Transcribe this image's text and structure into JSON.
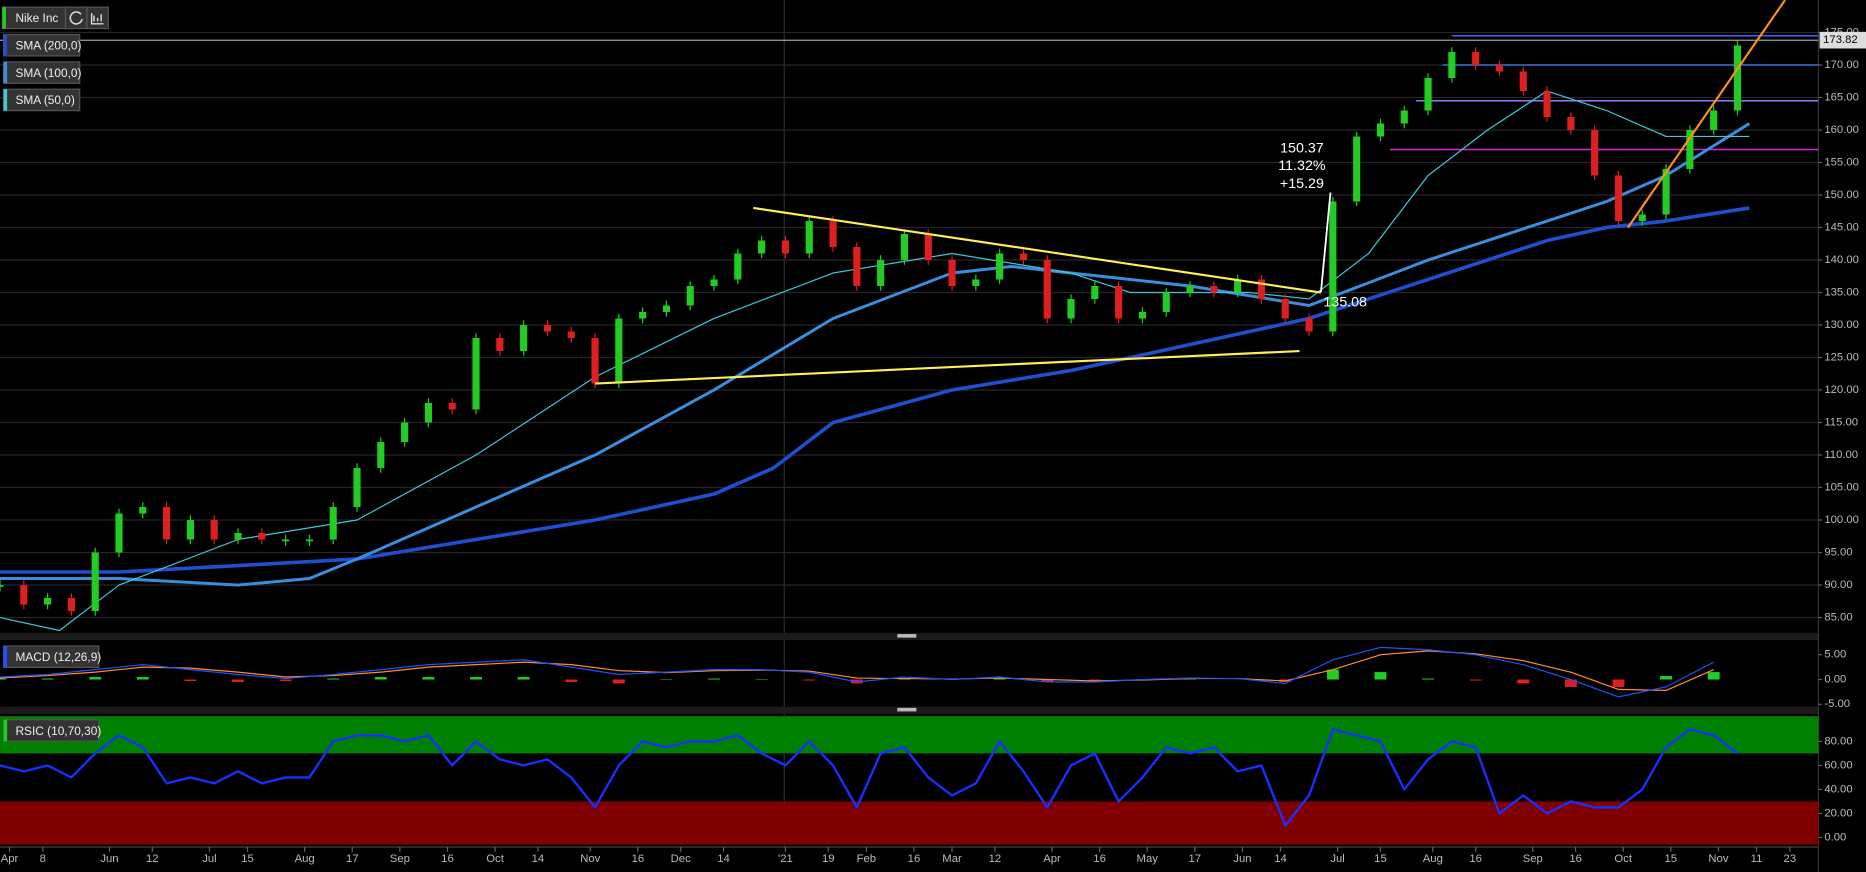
{
  "chart_data": [
    {
      "type": "candlestick",
      "title": "Nike Inc",
      "x": [
        0,
        5,
        10,
        15,
        20,
        25,
        30,
        35,
        40,
        45,
        50,
        55,
        60,
        65,
        70,
        75,
        80,
        85,
        90,
        95,
        100,
        105,
        110,
        115,
        120,
        125,
        130,
        135,
        140,
        145,
        150,
        155,
        160,
        165,
        170,
        175,
        180,
        185,
        190,
        195,
        200,
        205,
        210,
        215,
        220,
        225,
        230,
        235,
        240,
        245,
        250,
        255,
        260,
        265,
        270,
        275,
        280,
        285,
        290,
        295,
        300,
        305,
        310,
        315,
        320,
        325,
        330,
        335,
        340,
        345,
        350,
        355,
        360,
        365
      ],
      "values": [
        90,
        87,
        88,
        86,
        95,
        101,
        102,
        97,
        100,
        97,
        98,
        97,
        97,
        97,
        102,
        108,
        112,
        115,
        118,
        117,
        128,
        126,
        130,
        129,
        128,
        121,
        131,
        132,
        133,
        136,
        137,
        141,
        143,
        141,
        146,
        142,
        136,
        140,
        144,
        140,
        136,
        137,
        141,
        140,
        131,
        134,
        136,
        131,
        132,
        135,
        136,
        135,
        137,
        134,
        131,
        129,
        149,
        159,
        161,
        163,
        168,
        172,
        170,
        169,
        166,
        162,
        160,
        153,
        146,
        147,
        154,
        160,
        163,
        173
      ],
      "up_color": "#22cc22",
      "down_color": "#dd1f1f",
      "xlim": [
        0,
        382
      ],
      "ylim": [
        83,
        180
      ],
      "yticks": [
        {
          "value": 85,
          "label": "85.00"
        },
        {
          "value": 90,
          "label": "90.00"
        },
        {
          "value": 95,
          "label": "95.00"
        },
        {
          "value": 100,
          "label": "100.00"
        },
        {
          "value": 105,
          "label": "105.00"
        },
        {
          "value": 110,
          "label": "110.00"
        },
        {
          "value": 115,
          "label": "115.00"
        },
        {
          "value": 120,
          "label": "120.00"
        },
        {
          "value": 125,
          "label": "125.00"
        },
        {
          "value": 130,
          "label": "130.00"
        },
        {
          "value": 135,
          "label": "135.00"
        },
        {
          "value": 140,
          "label": "140.00"
        },
        {
          "value": 145,
          "label": "145.00"
        },
        {
          "value": 150,
          "label": "150.00"
        },
        {
          "value": 155,
          "label": "155.00"
        },
        {
          "value": 160,
          "label": "160.00"
        },
        {
          "value": 165,
          "label": "165.00"
        },
        {
          "value": 170,
          "label": "170.00"
        },
        {
          "value": 175,
          "label": "175.00"
        }
      ],
      "grid": true,
      "overlays": [
        {
          "name": "SMA (200,0)",
          "color": "#1f4fd0",
          "width": 3,
          "x": [
            0,
            25,
            50,
            75,
            100,
            125,
            150,
            162.5,
            175,
            200,
            225,
            250,
            275,
            300,
            325,
            337.5,
            350,
            367.5
          ],
          "values": [
            92,
            92,
            93,
            94,
            97,
            100,
            104,
            108,
            115,
            120,
            123,
            127,
            131,
            137,
            143,
            145,
            146,
            148
          ]
        },
        {
          "name": "SMA (100,0)",
          "color": "#3a8ee0",
          "width": 2.5,
          "x": [
            0,
            25,
            50,
            65,
            75,
            100,
            125,
            150,
            175,
            200,
            212.5,
            225,
            250,
            275,
            300,
            312.5,
            325,
            337.5,
            350,
            367.5
          ],
          "values": [
            91,
            91,
            90,
            91,
            94,
            102,
            110,
            120,
            131,
            138,
            139,
            138,
            136,
            133,
            140,
            143,
            146,
            149,
            153,
            161
          ]
        },
        {
          "name": "SMA (50,0)",
          "color": "#40c8d8",
          "width": 1,
          "x": [
            0,
            12.5,
            25,
            50,
            75,
            100,
            125,
            150,
            175,
            200,
            225,
            237.5,
            262.5,
            275,
            287.5,
            300,
            312.5,
            325,
            337.5,
            350,
            367.5
          ],
          "values": [
            85,
            83,
            90,
            97,
            100,
            110,
            122,
            131,
            138,
            141,
            138,
            135,
            135,
            134,
            141,
            153,
            160,
            166,
            163,
            159,
            159
          ]
        }
      ],
      "last_price": 173.82,
      "levels": [
        {
          "value": 174.5,
          "x_start": 305,
          "color": "#4a5cff"
        },
        {
          "value": 170,
          "x_start": 303,
          "color": "#3a6fd8"
        },
        {
          "value": 164.5,
          "x_start": 297.5,
          "color": "#8a7fff"
        },
        {
          "value": 157,
          "x_start": 292,
          "color": "#e020e0"
        }
      ],
      "trendlines": [
        {
          "color": "#ffee55",
          "x": [
            158.25,
            277.5
          ],
          "values": [
            148,
            135
          ]
        },
        {
          "color": "#ffee55",
          "x": [
            125,
            273
          ],
          "values": [
            121,
            126
          ]
        },
        {
          "color": "#ff9020",
          "x": [
            342,
            375
          ],
          "values": [
            145,
            180
          ]
        }
      ],
      "measurement": {
        "x": [
          277.5,
          279.5
        ],
        "values": [
          135.08,
          150.37
        ],
        "percent": "11.32%",
        "change": "+15.29"
      }
    },
    {
      "type": "macd",
      "title": "MACD (12,26,9)",
      "x": [
        0,
        10,
        20,
        30,
        40,
        50,
        60,
        70,
        80,
        90,
        100,
        110,
        120,
        130,
        140,
        150,
        160,
        170,
        180,
        190,
        200,
        210,
        220,
        230,
        240,
        250,
        260,
        270,
        280,
        290,
        300,
        310,
        320,
        330,
        340,
        350,
        360
      ],
      "macd": {
        "color": "#2050ff",
        "values": [
          0.5,
          1,
          2,
          3,
          2,
          1,
          0.2,
          1,
          2,
          3,
          3.5,
          4,
          2.5,
          1,
          1.5,
          2,
          2,
          1.5,
          -0.5,
          0.5,
          0,
          0.5,
          -0.5,
          -0.5,
          0,
          0.3,
          0.2,
          -0.8,
          4,
          6.5,
          6,
          5,
          3,
          0,
          -3.5,
          -1.5,
          3.5
        ]
      },
      "signal": {
        "color": "#ff8c30",
        "values": [
          0.3,
          0.8,
          1.5,
          2.5,
          2.3,
          1.5,
          0.5,
          0.8,
          1.5,
          2.5,
          3,
          3.5,
          3,
          1.8,
          1.4,
          1.8,
          1.9,
          1.7,
          0.3,
          0.2,
          0.1,
          0.3,
          0,
          -0.3,
          -0.1,
          0.2,
          0.2,
          -0.3,
          2,
          5,
          5.8,
          5.2,
          3.8,
          1.5,
          -2,
          -2.2,
          2
        ]
      },
      "histogram": {
        "up_color": "#22cc22",
        "down_color": "#dd1f1f",
        "values": [
          0.2,
          0.2,
          0.5,
          0.5,
          -0.3,
          -0.5,
          -0.3,
          0.2,
          0.5,
          0.5,
          0.5,
          0.5,
          -0.5,
          -0.8,
          0.1,
          0.2,
          0.1,
          -0.2,
          -0.8,
          0.3,
          -0.1,
          0.2,
          -0.5,
          -0.2,
          0.1,
          0.1,
          0,
          -0.5,
          2,
          1.5,
          0.2,
          -0.2,
          -0.8,
          -1.5,
          -1.5,
          0.7,
          1.5
        ]
      },
      "xlim": [
        0,
        382
      ],
      "ylim": [
        -5,
        7.5
      ],
      "yticks": [
        {
          "value": -5,
          "label": "-5.00"
        },
        {
          "value": 0,
          "label": "0.00"
        },
        {
          "value": 5,
          "label": "5.00"
        }
      ]
    },
    {
      "type": "rsi",
      "title": "RSIC (10,70,30)",
      "x": [
        0,
        5,
        10,
        15,
        20,
        25,
        30,
        35,
        40,
        45,
        50,
        55,
        60,
        65,
        70,
        75,
        80,
        85,
        90,
        95,
        100,
        105,
        110,
        115,
        120,
        125,
        130,
        135,
        140,
        145,
        150,
        155,
        160,
        165,
        170,
        175,
        180,
        185,
        190,
        195,
        200,
        205,
        210,
        215,
        220,
        225,
        230,
        235,
        240,
        245,
        250,
        255,
        260,
        265,
        270,
        275,
        280,
        285,
        290,
        295,
        300,
        305,
        310,
        315,
        320,
        325,
        330,
        335,
        340,
        345,
        350,
        355,
        360,
        365
      ],
      "values": [
        60,
        55,
        60,
        50,
        70,
        85,
        75,
        45,
        50,
        45,
        55,
        45,
        50,
        50,
        80,
        85,
        85,
        80,
        85,
        60,
        80,
        65,
        60,
        65,
        50,
        25,
        60,
        80,
        75,
        80,
        80,
        85,
        70,
        60,
        80,
        60,
        25,
        70,
        75,
        50,
        35,
        45,
        80,
        55,
        25,
        60,
        70,
        30,
        50,
        75,
        70,
        75,
        55,
        60,
        10,
        35,
        90,
        85,
        80,
        40,
        65,
        80,
        75,
        20,
        35,
        20,
        30,
        25,
        25,
        40,
        75,
        90,
        85,
        70
      ],
      "color": "#1a2fff",
      "overbought": 70,
      "overbought_color": "#008000",
      "oversold": 30,
      "oversold_color": "#800000",
      "xlim": [
        0,
        382
      ],
      "ylim": [
        -6,
        101
      ],
      "yticks": [
        {
          "value": 0,
          "label": "0.00"
        },
        {
          "value": 20,
          "label": "20.00"
        },
        {
          "value": 40,
          "label": "40.00"
        },
        {
          "value": 60,
          "label": "60.00"
        },
        {
          "value": 80,
          "label": "80.00"
        }
      ],
      "xticks": [
        {
          "value": 2,
          "label": "Apr"
        },
        {
          "value": 9,
          "label": "8"
        },
        {
          "value": 23,
          "label": "Jun"
        },
        {
          "value": 32,
          "label": "12"
        },
        {
          "value": 44,
          "label": "Jul"
        },
        {
          "value": 52,
          "label": "15"
        },
        {
          "value": 64,
          "label": "Aug"
        },
        {
          "value": 74,
          "label": "17"
        },
        {
          "value": 84,
          "label": "Sep"
        },
        {
          "value": 94,
          "label": "16"
        },
        {
          "value": 104,
          "label": "Oct"
        },
        {
          "value": 113,
          "label": "14"
        },
        {
          "value": 124,
          "label": "Nov"
        },
        {
          "value": 134,
          "label": "16"
        },
        {
          "value": 143,
          "label": "Dec"
        },
        {
          "value": 152,
          "label": "14"
        },
        {
          "value": 165,
          "label": "'21"
        },
        {
          "value": 174,
          "label": "19"
        },
        {
          "value": 182,
          "label": "Feb"
        },
        {
          "value": 192,
          "label": "16"
        },
        {
          "value": 200,
          "label": "Mar"
        },
        {
          "value": 209,
          "label": "12"
        },
        {
          "value": 221,
          "label": "Apr"
        },
        {
          "value": 231,
          "label": "16"
        },
        {
          "value": 241,
          "label": "May"
        },
        {
          "value": 251,
          "label": "17"
        },
        {
          "value": 261,
          "label": "Jun"
        },
        {
          "value": 269,
          "label": "14"
        },
        {
          "value": 281,
          "label": "Jul"
        },
        {
          "value": 290,
          "label": "15"
        },
        {
          "value": 301,
          "label": "Aug"
        },
        {
          "value": 310,
          "label": "16"
        },
        {
          "value": 322,
          "label": "Sep"
        },
        {
          "value": 331,
          "label": "16"
        },
        {
          "value": 341,
          "label": "Oct"
        },
        {
          "value": 351,
          "label": "15"
        },
        {
          "value": 361,
          "label": "Nov"
        },
        {
          "value": 369,
          "label": "11"
        },
        {
          "value": 376,
          "label": "23"
        }
      ]
    }
  ]
}
